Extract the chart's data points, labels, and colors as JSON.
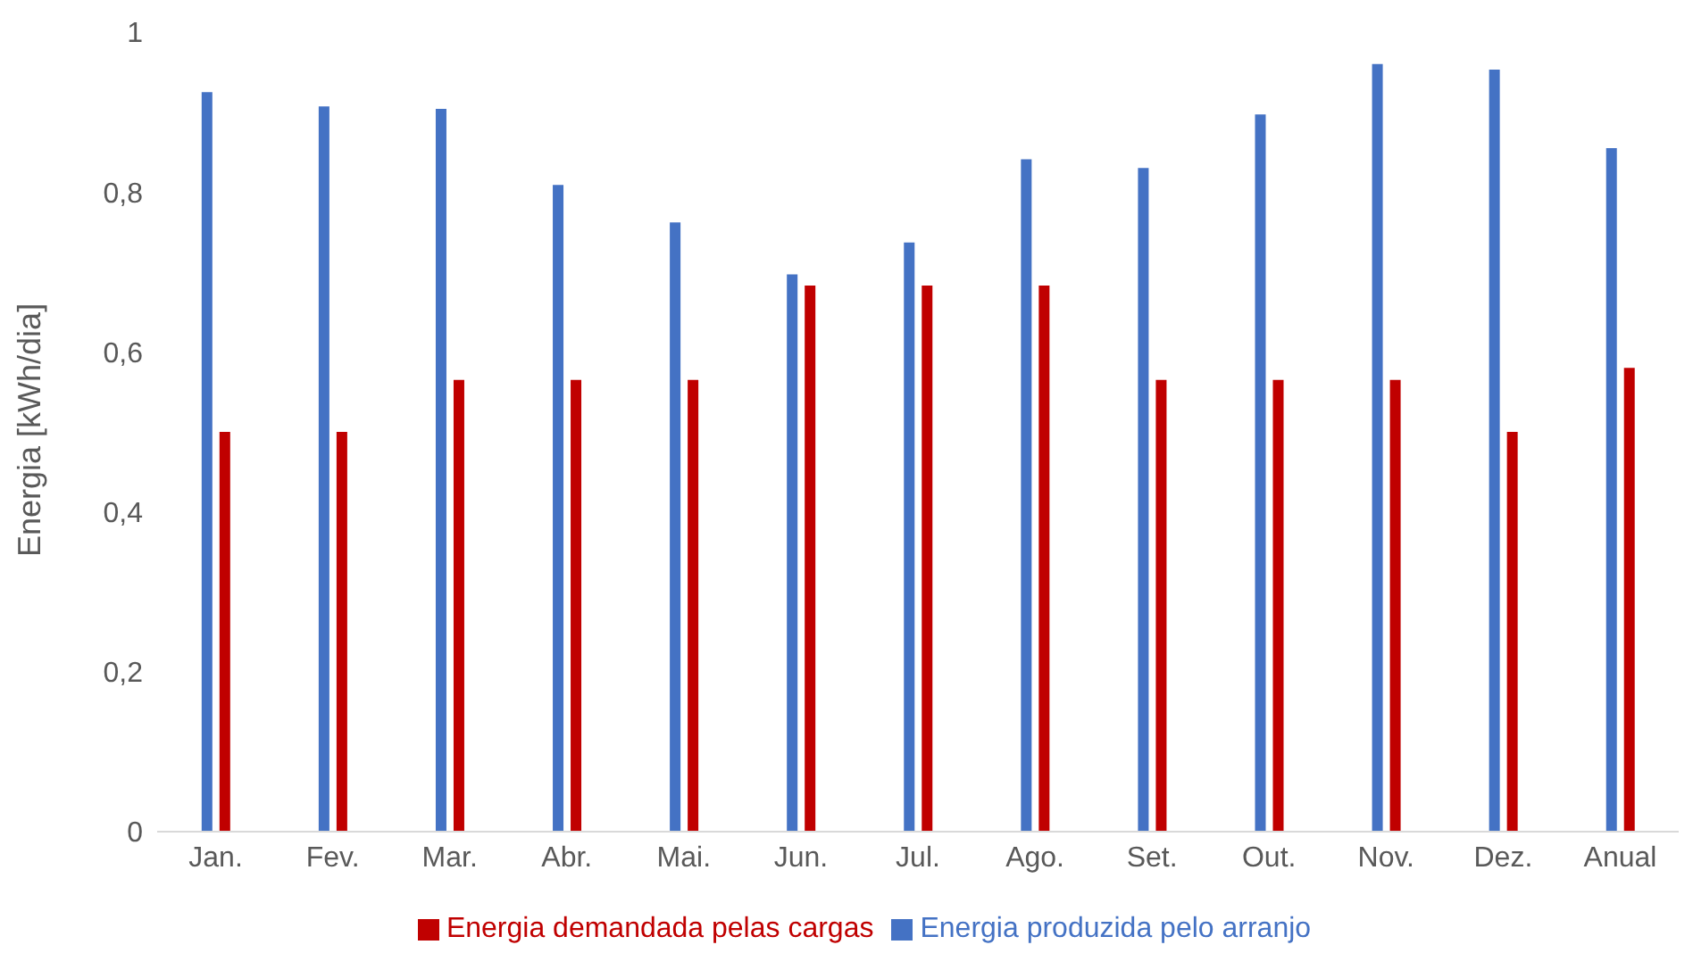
{
  "chart_data": {
    "type": "bar",
    "ylabel": "Energia [kWh/dia]",
    "categories": [
      "Jan.",
      "Fev.",
      "Mar.",
      "Abr.",
      "Mai.",
      "Jun.",
      "Jul.",
      "Ago.",
      "Set.",
      "Out.",
      "Nov.",
      "Dez.",
      "Anual"
    ],
    "series": [
      {
        "name": "Energia produzida pelo arranjo",
        "color": "#4472c4",
        "values": [
          0.925,
          0.907,
          0.904,
          0.809,
          0.762,
          0.697,
          0.737,
          0.841,
          0.83,
          0.897,
          0.96,
          0.953,
          0.855
        ]
      },
      {
        "name": "Energia demandada pelas cargas",
        "color": "#c00000",
        "values": [
          0.5,
          0.5,
          0.565,
          0.565,
          0.565,
          0.683,
          0.683,
          0.683,
          0.565,
          0.565,
          0.565,
          0.5,
          0.58
        ]
      }
    ],
    "ylim": [
      0,
      1
    ],
    "yticks": [
      {
        "value": 0,
        "label": "0"
      },
      {
        "value": 0.2,
        "label": "0,2"
      },
      {
        "value": 0.4,
        "label": "0,4"
      },
      {
        "value": 0.6,
        "label": "0,6"
      },
      {
        "value": 0.8,
        "label": "0,8"
      },
      {
        "value": 1,
        "label": "1"
      }
    ],
    "grid": false,
    "legend": "bottom"
  }
}
